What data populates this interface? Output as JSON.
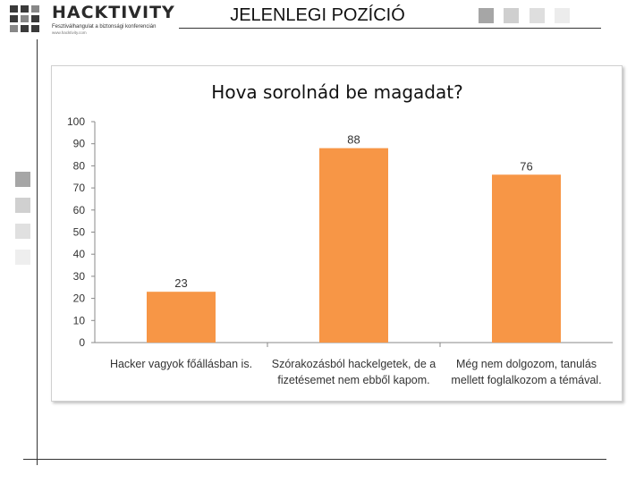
{
  "header": {
    "brand": "HACKTIVITY",
    "tagline": "Fesztiválhangulat a biztonsági konferencián",
    "subline": "www.hacktivity.com",
    "title": "JELENLEGI POZÍCIÓ"
  },
  "colors": {
    "bar": "#F79646",
    "square_dark": "#a6a6a6",
    "square_mid": "#cfcfcf",
    "square_light": "#e6e6e6",
    "square_lightest": "#f0f0f0"
  },
  "chart_data": {
    "type": "bar",
    "title": "Hova sorolnád be magadat?",
    "categories": [
      [
        "Hacker vagyok főállásban is."
      ],
      [
        "Szórakozásból hackelgetek, de a",
        "fizetésemet nem ebből kapom."
      ],
      [
        "Még nem dolgozom, tanulás",
        "mellett foglalkozom a témával."
      ]
    ],
    "values": [
      23,
      88,
      76
    ],
    "ylim": [
      0,
      100
    ],
    "yticks": [
      0,
      10,
      20,
      30,
      40,
      50,
      60,
      70,
      80,
      90,
      100
    ],
    "grid": false,
    "legend": "none"
  }
}
